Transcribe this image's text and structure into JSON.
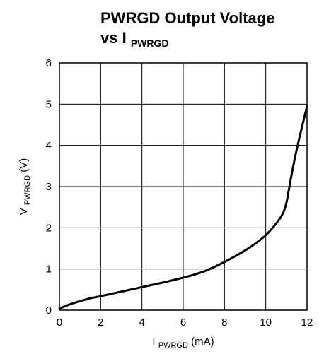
{
  "chart_data": {
    "type": "line",
    "title": {
      "line1": "PWRGD Output Voltage",
      "line2_prefix": "vs I",
      "line2_subscript": "PWRGD"
    },
    "xlabel": {
      "prefix": "I",
      "subscript": "PWRGD",
      "suffix": " (mA)"
    },
    "ylabel": {
      "prefix": "V",
      "subscript": "PWRGD",
      "suffix": " (V)"
    },
    "xlim": [
      0,
      12
    ],
    "ylim": [
      0,
      6
    ],
    "x_ticks": [
      "0",
      "2",
      "4",
      "6",
      "8",
      "10",
      "12"
    ],
    "y_ticks": [
      "0",
      "1",
      "2",
      "3",
      "4",
      "5",
      "6"
    ],
    "grid": true,
    "series": [
      {
        "x": [
          0,
          0.5,
          1,
          1.5,
          2,
          3,
          4,
          5,
          6,
          7,
          8,
          9,
          9.5,
          10,
          10.5,
          10.8,
          11,
          11.2,
          11.5,
          12
        ],
        "y": [
          0.04,
          0.14,
          0.22,
          0.29,
          0.34,
          0.45,
          0.56,
          0.67,
          0.79,
          0.94,
          1.17,
          1.45,
          1.62,
          1.82,
          2.1,
          2.32,
          2.6,
          3.15,
          3.9,
          4.95
        ]
      }
    ]
  }
}
